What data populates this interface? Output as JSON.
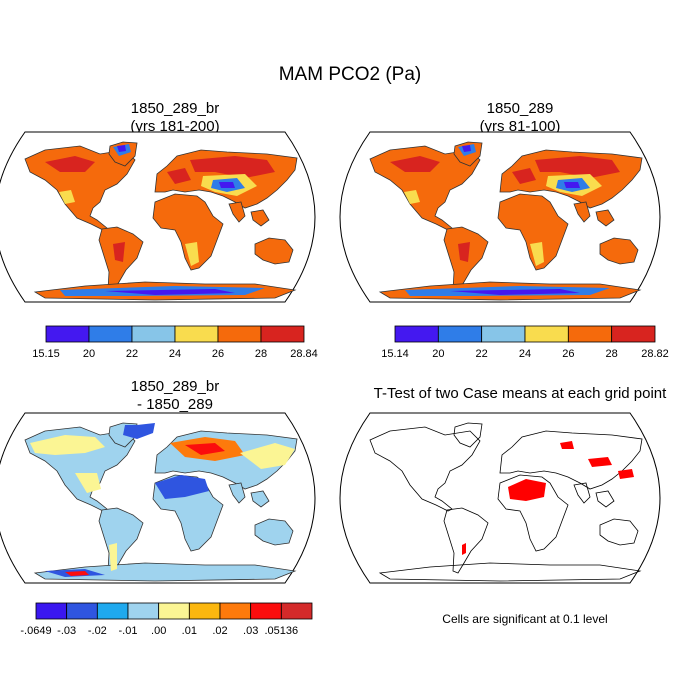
{
  "figure_title": "MAM PCO2 (Pa)",
  "panels": [
    {
      "title_line1": "1850_289_br",
      "title_line2": "(yrs 181-200)",
      "kind": "field"
    },
    {
      "title_line1": "1850_289",
      "title_line2": "(yrs 81-100)",
      "kind": "field"
    },
    {
      "title_line1": "1850_289_br",
      "title_line2": "- 1850_289",
      "kind": "difference"
    },
    {
      "title_line1": "T-Test of two Case means at each grid point",
      "title_line2": "",
      "kind": "ttest"
    }
  ],
  "colorbars": [
    {
      "labels": [
        "15.15",
        "20",
        "22",
        "24",
        "26",
        "28",
        "28.84"
      ],
      "colors": [
        "#4418f0",
        "#2f7de8",
        "#87c5e8",
        "#f9dc4e",
        "#f56a0c",
        "#d8241f"
      ]
    },
    {
      "labels": [
        "15.14",
        "20",
        "22",
        "24",
        "26",
        "28",
        "28.82"
      ],
      "colors": [
        "#4418f0",
        "#2f7de8",
        "#87c5e8",
        "#f9dc4e",
        "#f56a0c",
        "#d8241f"
      ]
    },
    {
      "labels": [
        "-.0649",
        "-.03",
        "-.02",
        "-.01",
        ".00",
        ".01",
        ".02",
        ".03",
        ".05136"
      ],
      "colors": [
        "#3a17f0",
        "#2f55e0",
        "#1fa9ee",
        "#9fd3ee",
        "#fbf594",
        "#fbb70f",
        "#fd7a0c",
        "#fb0d0d",
        "#d42a2a"
      ]
    }
  ],
  "significance_note": "Cells are significant at 0.1 level",
  "significance_color": "#ff0000",
  "land_colors": {
    "field_base": "#f56a0c",
    "field_warm": "#d8241f",
    "field_mid": "#f9dc4e",
    "field_low": "#2f7de8",
    "field_min": "#4418f0",
    "diff_base": "#9fd3ee",
    "diff_neg": "#2f55e0",
    "diff_pos": "#fd7a0c",
    "diff_max": "#fb0d0d",
    "diff_yellow": "#fbf594"
  }
}
